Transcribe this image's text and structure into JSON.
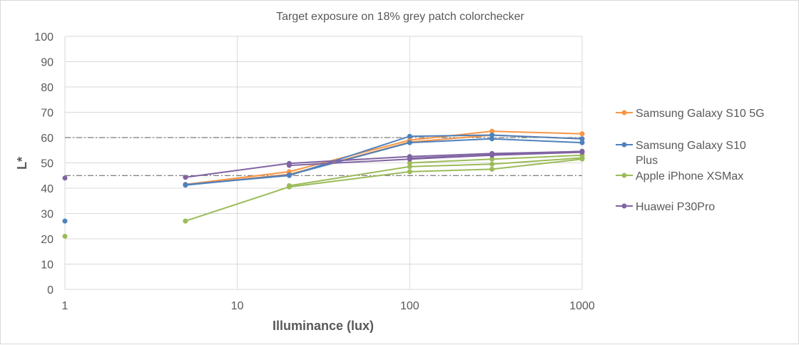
{
  "chart_data": {
    "type": "line",
    "title": "Target exposure on 18% grey patch colorchecker",
    "xlabel": "Illuminance  (lux)",
    "ylabel": "L*",
    "x_scale": "log",
    "xlim": [
      1,
      1000
    ],
    "ylim": [
      0,
      100
    ],
    "x_ticks": [
      1,
      10,
      100,
      1000
    ],
    "x_tick_labels": [
      "1",
      "10",
      "100",
      "1000"
    ],
    "y_ticks": [
      0,
      10,
      20,
      30,
      40,
      50,
      60,
      70,
      80,
      90,
      100
    ],
    "y_tick_labels": [
      "0",
      "10",
      "20",
      "30",
      "40",
      "50",
      "60",
      "70",
      "80",
      "90",
      "100"
    ],
    "grid": {
      "x_major": true,
      "y_major": true
    },
    "legend_position": "right",
    "reference_lines": [
      {
        "y": 60,
        "style": "dash-dot"
      },
      {
        "y": 45,
        "style": "dash-dot"
      }
    ],
    "series": [
      {
        "name": "Samsung Galaxy S10 5G",
        "color": "#f79646",
        "lines": [
          {
            "x": [
              5,
              20,
              100,
              300,
              1000
            ],
            "y": [
              41.5,
              46.5,
              59,
              62.5,
              61.5
            ]
          },
          {
            "x": [
              5,
              20,
              100,
              300,
              1000
            ],
            "y": [
              41.3,
              45.5,
              58.2,
              61,
              59.5
            ]
          }
        ]
      },
      {
        "name": "Samsung Galaxy S10 Plus",
        "color": "#4f81bd",
        "lines": [
          {
            "x": [
              5,
              20,
              100,
              300,
              1000
            ],
            "y": [
              41.2,
              45.2,
              58,
              59.5,
              58
            ]
          },
          {
            "x": [
              5,
              20,
              100,
              300,
              1000
            ],
            "y": [
              41.4,
              45,
              60.5,
              61,
              59.5
            ]
          }
        ],
        "points": [
          {
            "x": 1,
            "y": 27
          }
        ]
      },
      {
        "name": "Apple iPhone XSMax",
        "color": "#9bbb59",
        "lines": [
          {
            "x": [
              5,
              20,
              100,
              300,
              1000
            ],
            "y": [
              27,
              40.5,
              46.5,
              47.5,
              51.5
            ]
          },
          {
            "x": [
              20,
              100,
              300,
              1000
            ],
            "y": [
              41,
              48.5,
              49.5,
              52
            ]
          },
          {
            "x": [
              100,
              300,
              1000
            ],
            "y": [
              50,
              51.5,
              53
            ]
          }
        ],
        "points": [
          {
            "x": 1,
            "y": 21
          }
        ]
      },
      {
        "name": "Huawei P30Pro",
        "color": "#8064a2",
        "lines": [
          {
            "x": [
              5,
              20,
              100,
              300,
              1000
            ],
            "y": [
              44.3,
              49.8,
              52.5,
              53.7,
              54.5
            ]
          },
          {
            "x": [
              20,
              100,
              300,
              1000
            ],
            "y": [
              49,
              51.5,
              53,
              54.2
            ]
          },
          {
            "x": [
              100,
              300,
              1000
            ],
            "y": [
              51.8,
              53.2,
              54.6
            ]
          }
        ],
        "points": [
          {
            "x": 1,
            "y": 44
          }
        ]
      }
    ],
    "legend": [
      {
        "lines": [
          "Samsung Galaxy S10 5G"
        ],
        "color": "#f79646"
      },
      {
        "lines": [
          "Samsung Galaxy S10",
          "Plus"
        ],
        "color": "#4f81bd"
      },
      {
        "lines": [
          "Apple iPhone XSMax"
        ],
        "color": "#9bbb59"
      },
      {
        "lines": [
          "Huawei P30Pro"
        ],
        "color": "#8064a2"
      }
    ]
  }
}
